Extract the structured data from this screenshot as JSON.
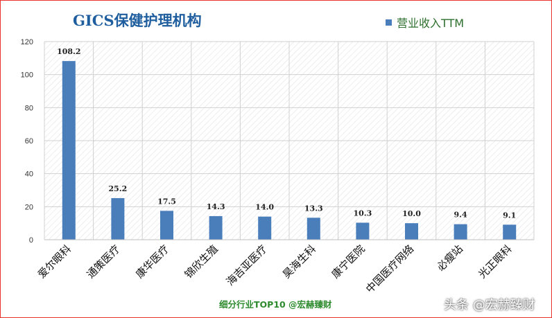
{
  "chart_data": {
    "type": "bar",
    "title": "GICS保健护理机构",
    "legend": [
      "营业收入TTM"
    ],
    "legend_position": "top-right",
    "categories": [
      "爱尔眼科",
      "通策医疗",
      "康华医疗",
      "锦欣生殖",
      "海吉亚医疗",
      "昊海生科",
      "康宁医院",
      "中国医疗网络",
      "必瘦站",
      "光正眼科"
    ],
    "series": [
      {
        "name": "营业收入TTM",
        "values": [
          108.2,
          25.2,
          17.5,
          14.3,
          14.0,
          13.3,
          10.3,
          10.0,
          9.4,
          9.1
        ]
      }
    ],
    "value_labels": [
      "108.2",
      "25.2",
      "17.5",
      "14.3",
      "14.0",
      "13.3",
      "10.3",
      "10.0",
      "9.4",
      "9.1"
    ],
    "y_ticks": [
      "0",
      "20",
      "40",
      "60",
      "80",
      "100",
      "120"
    ],
    "ylim": [
      0,
      120
    ],
    "grid": true,
    "colors": {
      "bar": "#4a7ebb",
      "title": "#1f5e9e",
      "legend_text": "#2d6f2d",
      "frame": "#e8322b"
    }
  },
  "footer": {
    "credit": "细分行业TOP10 @宏赫臻财"
  },
  "watermark": {
    "text": "头条 @宏赫臻财"
  }
}
